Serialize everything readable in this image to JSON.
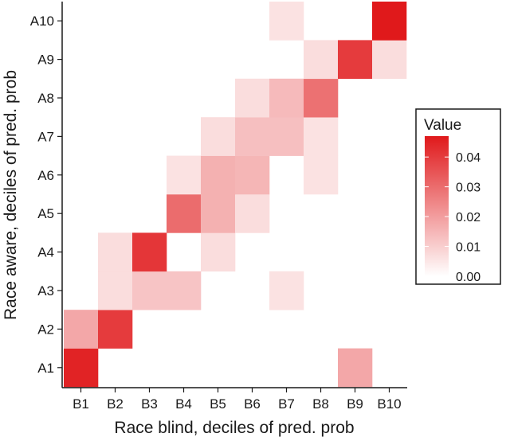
{
  "chart_data": {
    "type": "heatmap",
    "xlabel": "Race blind, deciles of pred. prob",
    "ylabel": "Race aware, deciles of pred. prob",
    "x_categories": [
      "B1",
      "B2",
      "B3",
      "B4",
      "B5",
      "B6",
      "B7",
      "B8",
      "B9",
      "B10"
    ],
    "y_categories": [
      "A1",
      "A2",
      "A3",
      "A4",
      "A5",
      "A6",
      "A7",
      "A8",
      "A9",
      "A10"
    ],
    "cells": [
      {
        "x": "B1",
        "y": "A1",
        "value": 0.045
      },
      {
        "x": "B9",
        "y": "A1",
        "value": 0.018
      },
      {
        "x": "B1",
        "y": "A2",
        "value": 0.018
      },
      {
        "x": "B2",
        "y": "A2",
        "value": 0.04
      },
      {
        "x": "B2",
        "y": "A3",
        "value": 0.007
      },
      {
        "x": "B3",
        "y": "A3",
        "value": 0.012
      },
      {
        "x": "B4",
        "y": "A3",
        "value": 0.012
      },
      {
        "x": "B7",
        "y": "A3",
        "value": 0.006
      },
      {
        "x": "B2",
        "y": "A4",
        "value": 0.007
      },
      {
        "x": "B3",
        "y": "A4",
        "value": 0.041
      },
      {
        "x": "B5",
        "y": "A4",
        "value": 0.007
      },
      {
        "x": "B4",
        "y": "A5",
        "value": 0.03
      },
      {
        "x": "B5",
        "y": "A5",
        "value": 0.016
      },
      {
        "x": "B6",
        "y": "A5",
        "value": 0.007
      },
      {
        "x": "B4",
        "y": "A6",
        "value": 0.006
      },
      {
        "x": "B5",
        "y": "A6",
        "value": 0.016
      },
      {
        "x": "B6",
        "y": "A6",
        "value": 0.015
      },
      {
        "x": "B8",
        "y": "A6",
        "value": 0.006
      },
      {
        "x": "B5",
        "y": "A7",
        "value": 0.007
      },
      {
        "x": "B6",
        "y": "A7",
        "value": 0.013
      },
      {
        "x": "B7",
        "y": "A7",
        "value": 0.013
      },
      {
        "x": "B8",
        "y": "A7",
        "value": 0.006
      },
      {
        "x": "B6",
        "y": "A8",
        "value": 0.007
      },
      {
        "x": "B7",
        "y": "A8",
        "value": 0.014
      },
      {
        "x": "B8",
        "y": "A8",
        "value": 0.029
      },
      {
        "x": "B8",
        "y": "A9",
        "value": 0.007
      },
      {
        "x": "B9",
        "y": "A9",
        "value": 0.04
      },
      {
        "x": "B10",
        "y": "A9",
        "value": 0.007
      },
      {
        "x": "B7",
        "y": "A10",
        "value": 0.006
      },
      {
        "x": "B10",
        "y": "A10",
        "value": 0.047
      }
    ],
    "legend": {
      "title": "Value",
      "ticks": [
        0.0,
        0.01,
        0.02,
        0.03,
        0.04
      ],
      "tick_labels": [
        "0.00",
        "0.01",
        "0.02",
        "0.03",
        "0.04"
      ],
      "range": [
        0,
        0.047
      ],
      "placement": "right"
    },
    "colors": {
      "low": "#ffffff",
      "high": "#e0191b"
    },
    "grid": false
  }
}
